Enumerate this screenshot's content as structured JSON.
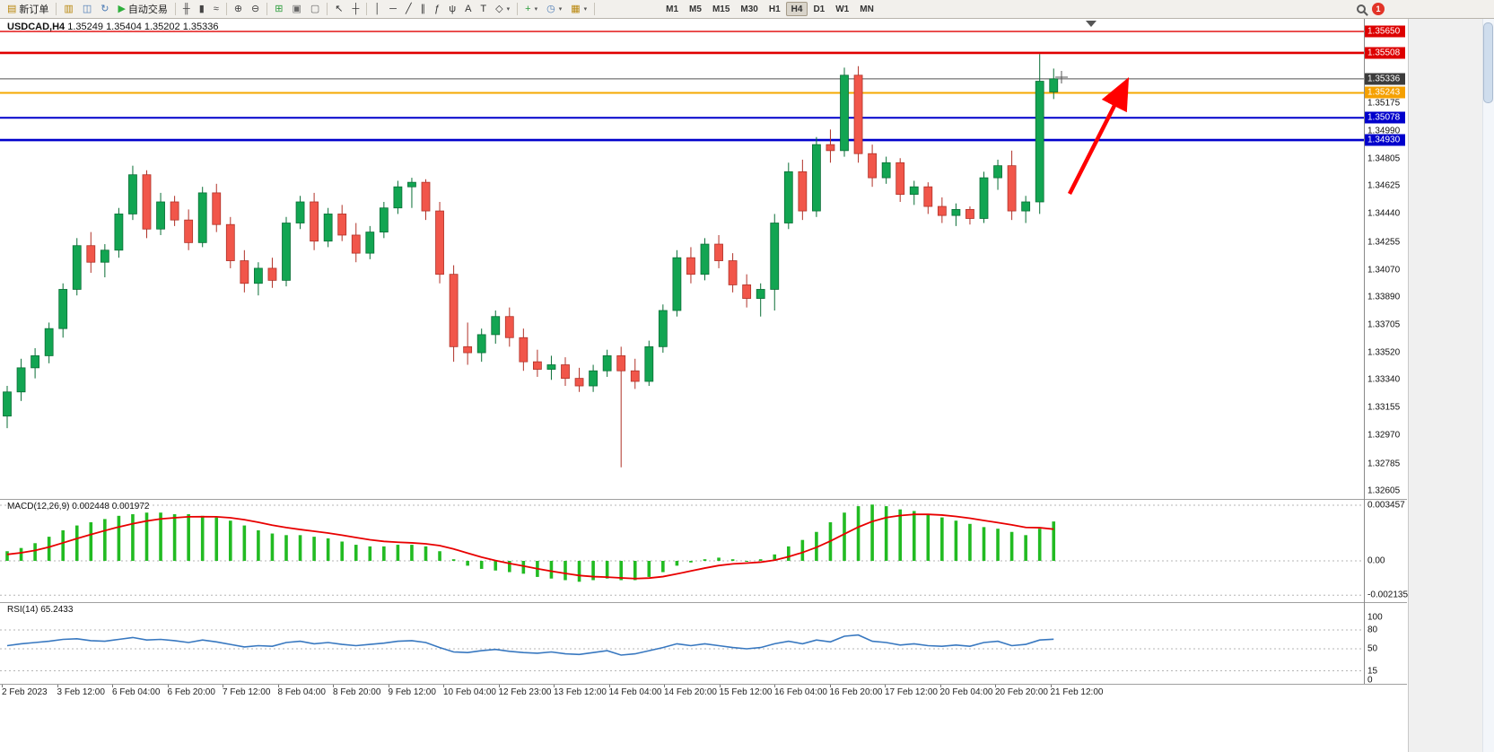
{
  "toolbar": {
    "buttons": [
      {
        "name": "new-order-button",
        "label": "新订单",
        "icon": "new-order-icon",
        "glyph": "▤",
        "color": "#b8860b"
      },
      {
        "sep": true
      },
      {
        "name": "profiles-button",
        "icon": "profiles-icon",
        "glyph": "▥",
        "color": "#b8860b"
      },
      {
        "name": "market-watch-button",
        "icon": "market-watch-icon",
        "glyph": "◫",
        "color": "#4a7ab5"
      },
      {
        "name": "refresh-button",
        "icon": "refresh-icon",
        "glyph": "↻",
        "color": "#4a7ab5"
      },
      {
        "name": "autotrading-button",
        "label": "自动交易",
        "icon": "autotrade-play-icon",
        "glyph": "▶",
        "color": "#2eaf3c"
      },
      {
        "sep": true
      },
      {
        "name": "bar-chart-button",
        "icon": "ohlc-bars-icon",
        "glyph": "╫",
        "color": "#444444"
      },
      {
        "name": "candlestick-chart-button",
        "icon": "candles-icon",
        "glyph": "▮",
        "color": "#444444"
      },
      {
        "name": "line-chart-button",
        "icon": "line-chart-icon",
        "glyph": "≈",
        "color": "#444444"
      },
      {
        "sep": true
      },
      {
        "name": "zoom-in-button",
        "icon": "zoom-in-icon",
        "glyph": "⊕",
        "color": "#444444"
      },
      {
        "name": "zoom-out-button",
        "icon": "zoom-out-icon",
        "glyph": "⊖",
        "color": "#444444"
      },
      {
        "sep": true
      },
      {
        "name": "grid-button",
        "icon": "grid-icon",
        "glyph": "⊞",
        "color": "#2e9e3e"
      },
      {
        "name": "tile-windows-button",
        "icon": "tile-windows-icon",
        "glyph": "▣",
        "color": "#666666"
      },
      {
        "name": "cascade-windows-button",
        "icon": "cascade-windows-icon",
        "glyph": "▢",
        "color": "#666666"
      },
      {
        "sep": true
      },
      {
        "name": "cursor-button",
        "icon": "cursor-arrow-icon",
        "glyph": "↖",
        "color": "#333333"
      },
      {
        "name": "crosshair-button",
        "icon": "crosshair-icon",
        "glyph": "┼",
        "color": "#333333"
      },
      {
        "sep": true
      },
      {
        "name": "vertical-line-button",
        "icon": "vertical-line-icon",
        "glyph": "│",
        "color": "#333333"
      },
      {
        "name": "horizontal-line-button",
        "icon": "horizontal-line-icon",
        "glyph": "─",
        "color": "#333333"
      },
      {
        "name": "trendline-button",
        "icon": "trendline-icon",
        "glyph": "╱",
        "color": "#333333"
      },
      {
        "name": "channel-button",
        "icon": "channel-icon",
        "glyph": "∥",
        "color": "#333333"
      },
      {
        "name": "fibonacci-button",
        "icon": "fibonacci-icon",
        "glyph": "ƒ",
        "color": "#333333"
      },
      {
        "name": "andrews-fork-button",
        "icon": "andrews-fork-icon",
        "glyph": "ψ",
        "color": "#333333"
      },
      {
        "name": "text-button",
        "icon": "text-icon",
        "glyph": "A",
        "color": "#333333"
      },
      {
        "name": "text-label-button",
        "icon": "text-label-icon",
        "glyph": "T",
        "color": "#333333"
      },
      {
        "name": "shapes-button",
        "icon": "shapes-icon",
        "glyph": "◇",
        "color": "#333333",
        "dropdown": true
      },
      {
        "sep": true
      },
      {
        "name": "indicators-button",
        "icon": "indicators-icon",
        "glyph": "+",
        "color": "#2e9e3e",
        "dropdown": true
      },
      {
        "name": "periods-button",
        "icon": "clock-icon",
        "glyph": "◷",
        "color": "#4a7ab5",
        "dropdown": true
      },
      {
        "name": "templates-button",
        "icon": "template-icon",
        "glyph": "▦",
        "color": "#b8860b",
        "dropdown": true
      },
      {
        "sep": true
      }
    ],
    "timeframes": [
      {
        "label": "M1"
      },
      {
        "label": "M5"
      },
      {
        "label": "M15"
      },
      {
        "label": "M30"
      },
      {
        "label": "H1"
      },
      {
        "label": "H4",
        "active": true
      },
      {
        "label": "D1"
      },
      {
        "label": "W1"
      },
      {
        "label": "MN"
      }
    ],
    "notification_count": "1"
  },
  "chart": {
    "symbol_period": "USDCAD,H4",
    "ohlc_display": "1.35249 1.35404 1.35202 1.35336"
  },
  "indicators": {
    "macd": {
      "label": "MACD(12,26,9)",
      "values_display": "0.002448 0.001972"
    },
    "rsi": {
      "label": "RSI(14)",
      "value_display": "65.2433"
    }
  },
  "colors": {
    "candle_up": "#12a552",
    "candle_up_border": "#0a6e36",
    "candle_down": "#f1564a",
    "candle_down_border": "#b03228",
    "macd_histogram": "#22bb22",
    "macd_signal": "#e80000",
    "rsi_line": "#3878c0",
    "arrow": "#ff0000"
  },
  "horizontal_lines": [
    {
      "price": 1.3565,
      "color": "#e00000",
      "width": 1.4
    },
    {
      "price": 1.35508,
      "color": "#e00000",
      "width": 2.6
    },
    {
      "price": 1.35336,
      "color": "#505050",
      "width": 1.0
    },
    {
      "price": 1.35243,
      "color": "#f5a800",
      "width": 2.0
    },
    {
      "price": 1.35078,
      "color": "#0000cc",
      "width": 2.0
    },
    {
      "price": 1.3493,
      "color": "#0000cc",
      "width": 2.6
    }
  ],
  "price_axis": {
    "ticks": [
      "1.35175",
      "1.34990",
      "1.34805",
      "1.34625",
      "1.34440",
      "1.34255",
      "1.34070",
      "1.33890",
      "1.33705",
      "1.33520",
      "1.33340",
      "1.33155",
      "1.32970",
      "1.32785",
      "1.32605"
    ],
    "badges": [
      {
        "text": "1.35650",
        "color": "#dd0000"
      },
      {
        "text": "1.35508",
        "color": "#dd0000"
      },
      {
        "text": "1.35336",
        "color": "#3c3c3c"
      },
      {
        "text": "1.35243",
        "color": "#f5a000"
      },
      {
        "text": "1.35078",
        "color": "#0000cc"
      },
      {
        "text": "1.34930",
        "color": "#0000cc"
      }
    ]
  },
  "annotation_arrow": {
    "from": [
      1192,
      216
    ],
    "to": [
      1254,
      94
    ],
    "color": "#ff0000"
  },
  "chart_data": [
    {
      "type": "candlestick",
      "title": "USDCAD,H4",
      "current_bar": {
        "open": "1.35249",
        "high": "1.35404",
        "low": "1.35202",
        "close": "1.35336"
      },
      "y_range": {
        "top": 1.3574,
        "bottom": 1.32551
      },
      "x_labels": [
        "2 Feb 2023",
        "3 Feb 12:00",
        "6 Feb 04:00",
        "6 Feb 20:00",
        "7 Feb 12:00",
        "8 Feb 04:00",
        "8 Feb 20:00",
        "9 Feb 12:00",
        "10 Feb 04:00",
        "12 Feb 23:00",
        "13 Feb 12:00",
        "14 Feb 04:00",
        "14 Feb 20:00",
        "15 Feb 12:00",
        "16 Feb 04:00",
        "16 Feb 20:00",
        "17 Feb 12:00",
        "20 Feb 04:00",
        "20 Feb 20:00",
        "21 Feb 12:00"
      ],
      "ohlc": [
        [
          1.331,
          1.333,
          1.3302,
          1.3326
        ],
        [
          1.3326,
          1.3348,
          1.332,
          1.3342
        ],
        [
          1.3342,
          1.3355,
          1.3335,
          1.335
        ],
        [
          1.335,
          1.3372,
          1.3345,
          1.3368
        ],
        [
          1.3368,
          1.3398,
          1.3362,
          1.3394
        ],
        [
          1.3394,
          1.3428,
          1.339,
          1.3423
        ],
        [
          1.3423,
          1.3432,
          1.3405,
          1.3412
        ],
        [
          1.3412,
          1.3424,
          1.3402,
          1.342
        ],
        [
          1.342,
          1.3448,
          1.3415,
          1.3444
        ],
        [
          1.3444,
          1.3476,
          1.344,
          1.347
        ],
        [
          1.347,
          1.3473,
          1.3428,
          1.3434
        ],
        [
          1.3434,
          1.3458,
          1.343,
          1.3452
        ],
        [
          1.3452,
          1.3456,
          1.3436,
          1.344
        ],
        [
          1.344,
          1.3447,
          1.342,
          1.3425
        ],
        [
          1.3425,
          1.3462,
          1.3422,
          1.3458
        ],
        [
          1.3458,
          1.3464,
          1.3432,
          1.3437
        ],
        [
          1.3437,
          1.3442,
          1.3408,
          1.3413
        ],
        [
          1.3413,
          1.342,
          1.3392,
          1.3398
        ],
        [
          1.3398,
          1.3412,
          1.339,
          1.3408
        ],
        [
          1.3408,
          1.3415,
          1.3395,
          1.34
        ],
        [
          1.34,
          1.3442,
          1.3396,
          1.3438
        ],
        [
          1.3438,
          1.3456,
          1.3434,
          1.3452
        ],
        [
          1.3452,
          1.3458,
          1.342,
          1.3426
        ],
        [
          1.3426,
          1.3448,
          1.3422,
          1.3444
        ],
        [
          1.3444,
          1.345,
          1.3426,
          1.343
        ],
        [
          1.343,
          1.3438,
          1.3412,
          1.3418
        ],
        [
          1.3418,
          1.3436,
          1.3414,
          1.3432
        ],
        [
          1.3432,
          1.3452,
          1.3428,
          1.3448
        ],
        [
          1.3448,
          1.3466,
          1.3444,
          1.3462
        ],
        [
          1.3462,
          1.3468,
          1.3448,
          1.3465
        ],
        [
          1.3465,
          1.3467,
          1.344,
          1.3446
        ],
        [
          1.3446,
          1.3452,
          1.3398,
          1.3404
        ],
        [
          1.3404,
          1.341,
          1.3346,
          1.3356
        ],
        [
          1.3356,
          1.3372,
          1.3344,
          1.3352
        ],
        [
          1.3352,
          1.3368,
          1.3346,
          1.3364
        ],
        [
          1.3364,
          1.338,
          1.3358,
          1.3376
        ],
        [
          1.3376,
          1.3382,
          1.3356,
          1.3362
        ],
        [
          1.3362,
          1.3368,
          1.334,
          1.3346
        ],
        [
          1.3346,
          1.3354,
          1.3336,
          1.3341
        ],
        [
          1.3341,
          1.335,
          1.3334,
          1.3344
        ],
        [
          1.3344,
          1.3349,
          1.333,
          1.3335
        ],
        [
          1.3335,
          1.3342,
          1.3326,
          1.333
        ],
        [
          1.333,
          1.3344,
          1.3326,
          1.334
        ],
        [
          1.334,
          1.3354,
          1.3336,
          1.335
        ],
        [
          1.335,
          1.3356,
          1.3276,
          1.334
        ],
        [
          1.334,
          1.3348,
          1.3328,
          1.3333
        ],
        [
          1.3333,
          1.336,
          1.333,
          1.3356
        ],
        [
          1.3356,
          1.3384,
          1.3352,
          1.338
        ],
        [
          1.338,
          1.342,
          1.3376,
          1.3415
        ],
        [
          1.3415,
          1.3422,
          1.3398,
          1.3404
        ],
        [
          1.3404,
          1.3428,
          1.34,
          1.3424
        ],
        [
          1.3424,
          1.343,
          1.3408,
          1.3413
        ],
        [
          1.3413,
          1.3418,
          1.3392,
          1.3397
        ],
        [
          1.3397,
          1.3404,
          1.3382,
          1.3388
        ],
        [
          1.3388,
          1.3398,
          1.3376,
          1.3394
        ],
        [
          1.3394,
          1.3444,
          1.338,
          1.3438
        ],
        [
          1.3438,
          1.3478,
          1.3434,
          1.3472
        ],
        [
          1.3472,
          1.348,
          1.344,
          1.3446
        ],
        [
          1.3446,
          1.3495,
          1.3442,
          1.349
        ],
        [
          1.349,
          1.35,
          1.3478,
          1.3486
        ],
        [
          1.3486,
          1.3541,
          1.3482,
          1.3536
        ],
        [
          1.3536,
          1.3542,
          1.3478,
          1.3484
        ],
        [
          1.3484,
          1.349,
          1.3462,
          1.3468
        ],
        [
          1.3468,
          1.3482,
          1.3464,
          1.3478
        ],
        [
          1.3478,
          1.3481,
          1.3452,
          1.3457
        ],
        [
          1.3457,
          1.3466,
          1.345,
          1.3462
        ],
        [
          1.3462,
          1.3465,
          1.3444,
          1.3449
        ],
        [
          1.3449,
          1.3455,
          1.3438,
          1.3443
        ],
        [
          1.3443,
          1.3451,
          1.3436,
          1.3447
        ],
        [
          1.3447,
          1.3449,
          1.3437,
          1.3441
        ],
        [
          1.3441,
          1.3472,
          1.3438,
          1.3468
        ],
        [
          1.3468,
          1.348,
          1.346,
          1.3476
        ],
        [
          1.3476,
          1.3486,
          1.344,
          1.3446
        ],
        [
          1.3446,
          1.3456,
          1.3438,
          1.3452
        ],
        [
          1.3452,
          1.355,
          1.3444,
          1.3532
        ],
        [
          1.35249,
          1.35404,
          1.35202,
          1.35336
        ]
      ]
    },
    {
      "type": "bar",
      "title": "MACD(12,26,9)",
      "current_values": [
        "0.002448",
        "0.001972"
      ],
      "y_labels": [
        "0.003457",
        "0.00",
        "-0.002135"
      ],
      "values": [
        0.0006,
        0.0008,
        0.0011,
        0.0015,
        0.0019,
        0.0022,
        0.0024,
        0.0026,
        0.0028,
        0.0029,
        0.003,
        0.003,
        0.0029,
        0.0029,
        0.0028,
        0.0027,
        0.0025,
        0.0022,
        0.0019,
        0.0017,
        0.0016,
        0.0016,
        0.0015,
        0.0014,
        0.0012,
        0.001,
        0.0009,
        0.0009,
        0.001,
        0.001,
        0.0009,
        0.0006,
        0.0001,
        -0.0003,
        -0.0005,
        -0.0006,
        -0.0007,
        -0.0008,
        -0.001,
        -0.0011,
        -0.0012,
        -0.0013,
        -0.0012,
        -0.0011,
        -0.0012,
        -0.0012,
        -0.001,
        -0.0007,
        -0.0003,
        -0.0001,
        0.0001,
        0.0002,
        0.0001,
        0.0,
        0.0001,
        0.0004,
        0.0009,
        0.0013,
        0.0018,
        0.0024,
        0.003,
        0.0034,
        0.0035,
        0.0034,
        0.0032,
        0.0031,
        0.0029,
        0.0027,
        0.0025,
        0.0023,
        0.0021,
        0.002,
        0.0018,
        0.0016,
        0.002,
        0.002448
      ],
      "signal": [
        0.0004,
        0.0005,
        0.00065,
        0.00086,
        0.00112,
        0.00139,
        0.00164,
        0.00188,
        0.00211,
        0.00231,
        0.00248,
        0.00261,
        0.00268,
        0.00274,
        0.00275,
        0.00274,
        0.00268,
        0.00256,
        0.0024,
        0.00222,
        0.00207,
        0.00195,
        0.00184,
        0.00173,
        0.0016,
        0.00145,
        0.00131,
        0.00121,
        0.00116,
        0.00112,
        0.00106,
        0.00095,
        0.00074,
        0.00048,
        0.00023,
        2e-05,
        -0.00016,
        -0.00032,
        -0.00049,
        -0.00064,
        -0.00078,
        -0.00091,
        -0.00098,
        -0.00101,
        -0.00106,
        -0.0011,
        -0.00107,
        -0.00098,
        -0.00081,
        -0.00063,
        -0.00045,
        -0.00029,
        -0.00019,
        -0.00014,
        -8e-05,
        4e-05,
        0.00026,
        0.00052,
        0.00084,
        0.00123,
        0.00167,
        0.0021,
        0.00245,
        0.00269,
        0.00282,
        0.00289,
        0.00289,
        0.00285,
        0.00276,
        0.00265,
        0.00251,
        0.00238,
        0.00224,
        0.00208,
        0.00206,
        0.00197
      ]
    },
    {
      "type": "line",
      "title": "RSI(14)",
      "current_value": "65.2433",
      "y_labels": [
        "100",
        "80",
        "50",
        "15",
        "0"
      ],
      "levels": [
        80,
        50,
        15
      ],
      "y_range": [
        0,
        100
      ],
      "values": [
        55,
        58,
        60,
        62,
        65,
        66,
        63,
        62,
        65,
        68,
        64,
        65,
        63,
        60,
        64,
        61,
        57,
        53,
        55,
        54,
        60,
        62,
        58,
        60,
        57,
        55,
        57,
        59,
        62,
        63,
        60,
        52,
        45,
        44,
        47,
        49,
        46,
        44,
        43,
        45,
        42,
        41,
        44,
        47,
        40,
        42,
        47,
        52,
        58,
        55,
        58,
        55,
        52,
        50,
        52,
        58,
        62,
        58,
        64,
        61,
        70,
        72,
        62,
        60,
        56,
        58,
        55,
        54,
        56,
        54,
        60,
        62,
        55,
        57,
        64,
        65.24
      ]
    }
  ]
}
